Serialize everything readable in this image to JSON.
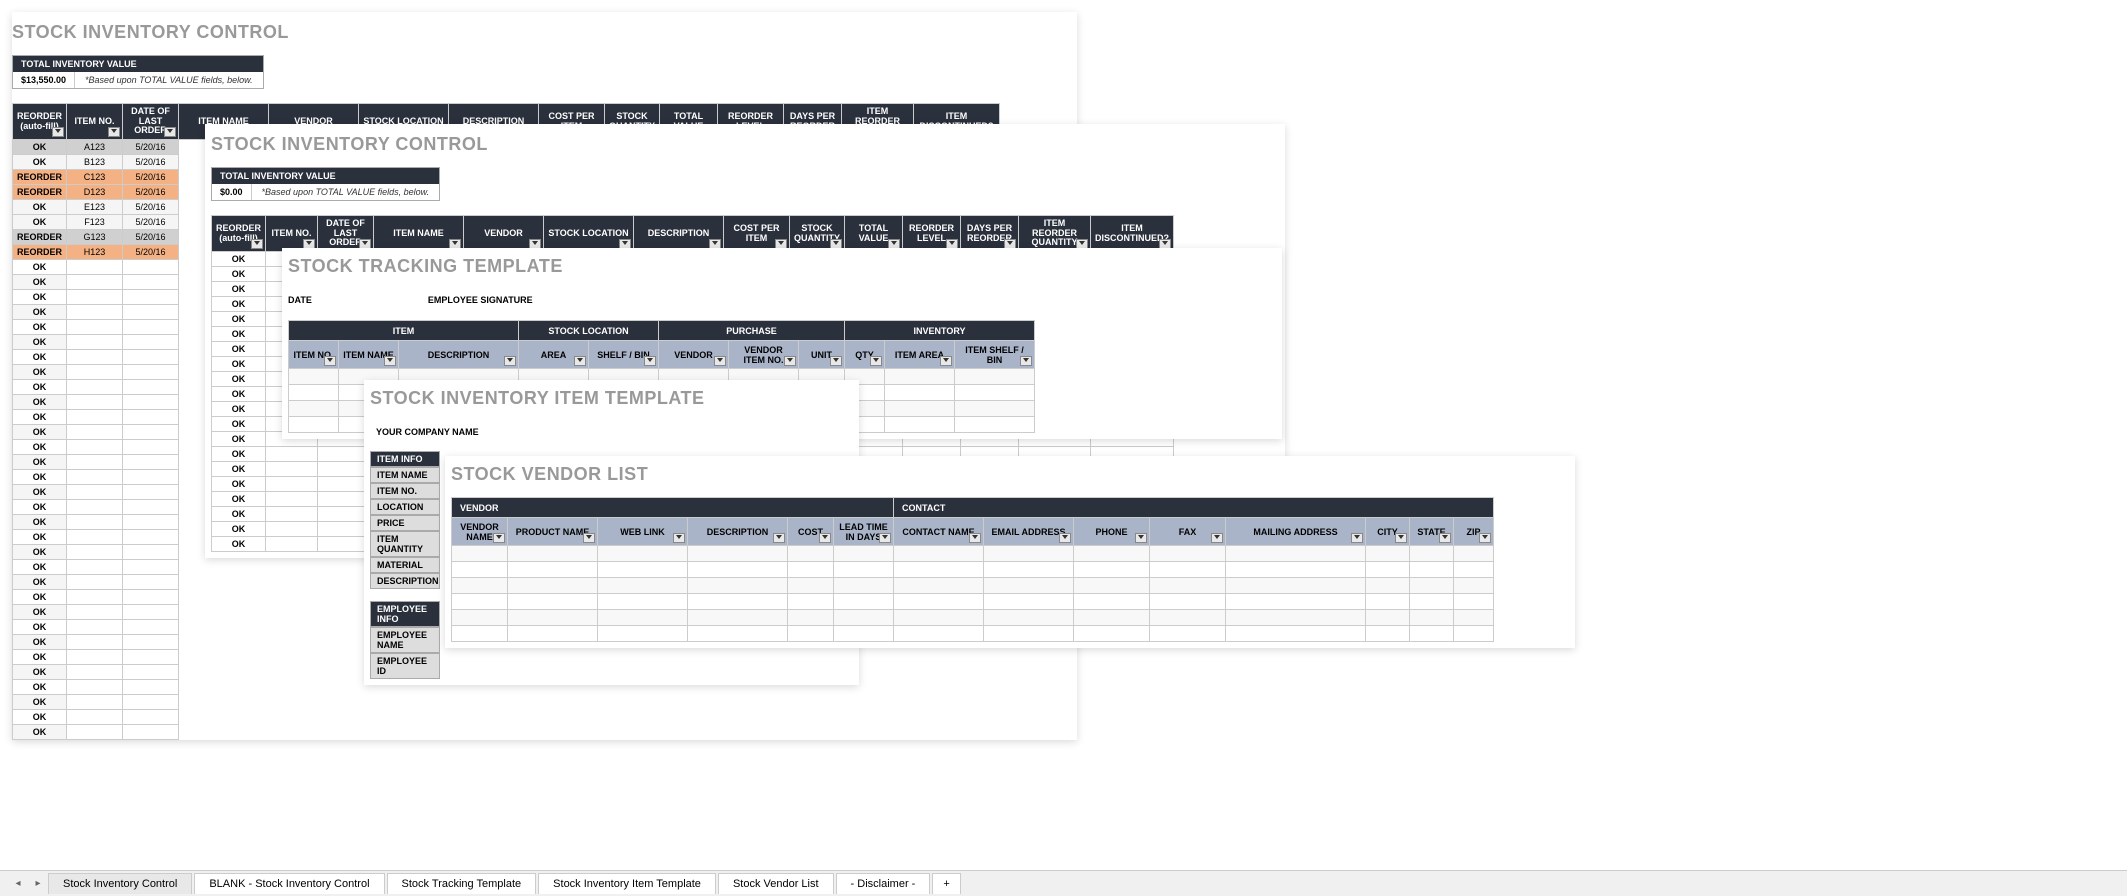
{
  "panel1": {
    "title": "STOCK INVENTORY CONTROL",
    "summary_header": "TOTAL INVENTORY VALUE",
    "summary_value": "$13,550.00",
    "summary_note": "*Based upon TOTAL VALUE fields, below.",
    "headers": [
      "REORDER (auto-fill)",
      "ITEM NO.",
      "DATE OF LAST ORDER",
      "ITEM NAME",
      "VENDOR",
      "STOCK LOCATION",
      "DESCRIPTION",
      "COST PER ITEM",
      "STOCK QUANTITY",
      "TOTAL VALUE",
      "REORDER LEVEL",
      "DAYS PER REORDER",
      "ITEM REORDER QUANTITY",
      "ITEM DISCONTINUED?"
    ],
    "rows": [
      {
        "status": "OK",
        "item": "A123",
        "date": "5/20/16",
        "cls": "row-ok"
      },
      {
        "status": "OK",
        "item": "B123",
        "date": "5/20/16",
        "cls": "row-ok-light"
      },
      {
        "status": "REORDER",
        "item": "C123",
        "date": "5/20/16",
        "cls": "row-reorder"
      },
      {
        "status": "REORDER",
        "item": "D123",
        "date": "5/20/16",
        "cls": "row-reorder"
      },
      {
        "status": "OK",
        "item": "E123",
        "date": "5/20/16",
        "cls": "row-ok-light"
      },
      {
        "status": "OK",
        "item": "F123",
        "date": "5/20/16",
        "cls": "row-ok-light"
      },
      {
        "status": "REORDER",
        "item": "G123",
        "date": "5/20/16",
        "cls": "row-ok"
      },
      {
        "status": "REORDER",
        "item": "H123",
        "date": "5/20/16",
        "cls": "row-reorder"
      }
    ],
    "ok_fill": "OK"
  },
  "panel2": {
    "title": "STOCK INVENTORY CONTROL",
    "summary_header": "TOTAL INVENTORY VALUE",
    "summary_value": "$0.00",
    "summary_note": "*Based upon TOTAL VALUE fields, below.",
    "headers": [
      "REORDER (auto-fill)",
      "ITEM NO.",
      "DATE OF LAST ORDER",
      "ITEM NAME",
      "VENDOR",
      "STOCK LOCATION",
      "DESCRIPTION",
      "COST PER ITEM",
      "STOCK QUANTITY",
      "TOTAL VALUE",
      "REORDER LEVEL",
      "DAYS PER REORDER",
      "ITEM REORDER QUANTITY",
      "ITEM DISCONTINUED?"
    ],
    "ok_fill": "OK"
  },
  "panel3": {
    "title": "STOCK TRACKING TEMPLATE",
    "date_label": "DATE",
    "sig_label": "EMPLOYEE SIGNATURE",
    "groups": [
      "ITEM",
      "STOCK LOCATION",
      "PURCHASE",
      "INVENTORY"
    ],
    "headers": [
      "ITEM NO.",
      "ITEM NAME",
      "DESCRIPTION",
      "AREA",
      "SHELF / BIN",
      "VENDOR",
      "VENDOR ITEM NO.",
      "UNIT",
      "QTY",
      "ITEM AREA",
      "ITEM SHELF / BIN"
    ]
  },
  "panel4": {
    "title": "STOCK INVENTORY ITEM TEMPLATE",
    "company": "YOUR COMPANY NAME",
    "info_header": "ITEM INFO",
    "fields": [
      "ITEM NAME",
      "ITEM NO.",
      "LOCATION",
      "PRICE",
      "ITEM QUANTITY",
      "MATERIAL",
      "DESCRIPTION"
    ],
    "emp_header": "EMPLOYEE INFO",
    "emp_fields": [
      "EMPLOYEE NAME",
      "EMPLOYEE ID"
    ]
  },
  "panel5": {
    "title": "STOCK VENDOR LIST",
    "groups": [
      "VENDOR",
      "CONTACT"
    ],
    "headers": [
      "VENDOR NAME",
      "PRODUCT NAME",
      "WEB LINK",
      "DESCRIPTION",
      "COST",
      "LEAD TIME IN DAYS",
      "CONTACT NAME",
      "EMAIL ADDRESS",
      "PHONE",
      "FAX",
      "MAILING ADDRESS",
      "CITY",
      "STATE",
      "ZIP"
    ]
  },
  "tabs": [
    "Stock Inventory Control",
    "BLANK - Stock Inventory Control",
    "Stock Tracking Template",
    "Stock Inventory Item Template",
    "Stock Vendor List",
    "- Disclaimer -"
  ],
  "tab_plus": "+"
}
